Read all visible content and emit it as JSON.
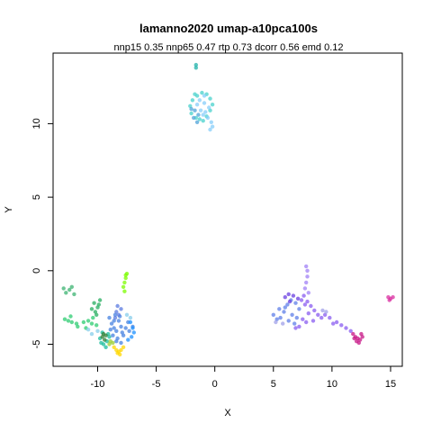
{
  "chart_data": {
    "type": "scatter",
    "title": "lamanno2020 umap-a10pca100s",
    "subtitle": "nnp15 0.35 nnp65 0.47 rtp 0.73 dcorr 0.56 emd 0.12",
    "xlabel": "X",
    "ylabel": "Y",
    "xlim": [
      -13.8,
      16.0
    ],
    "ylim": [
      -6.5,
      14.8
    ],
    "xticks": [
      -10,
      -5,
      0,
      5,
      10,
      15
    ],
    "yticks": [
      -5,
      0,
      5,
      10
    ],
    "grid": false,
    "legend": "none",
    "clusters": [
      {
        "color": "#2ECC71",
        "points": [
          [
            -10.5,
            -3.6
          ],
          [
            -10.8,
            -3.4
          ],
          [
            -11.2,
            -3.5
          ],
          [
            -11.8,
            -3.6
          ],
          [
            -12.2,
            -3.5
          ],
          [
            -12.5,
            -3.4
          ],
          [
            -12.8,
            -3.3
          ],
          [
            -12.3,
            -3.1
          ],
          [
            -11.7,
            -3.8
          ],
          [
            -11.0,
            -3.9
          ],
          [
            -10.4,
            -3.2
          ],
          [
            -10.1,
            -3.7
          ]
        ]
      },
      {
        "color": "#3CB371",
        "points": [
          [
            -12.4,
            -1.3
          ],
          [
            -12.7,
            -1.5
          ],
          [
            -12.9,
            -1.2
          ],
          [
            -12.2,
            -1.1
          ],
          [
            -12.0,
            -1.6
          ]
        ]
      },
      {
        "color": "#27AE60",
        "points": [
          [
            -10.3,
            -2.2
          ],
          [
            -10.0,
            -2.5
          ],
          [
            -10.2,
            -2.8
          ],
          [
            -9.8,
            -2.0
          ],
          [
            -10.5,
            -2.6
          ],
          [
            -10.1,
            -3.0
          ],
          [
            -9.9,
            -2.3
          ]
        ]
      },
      {
        "color": "#7CFC00",
        "points": [
          [
            -7.5,
            -0.2
          ],
          [
            -7.6,
            -0.5
          ],
          [
            -7.7,
            -0.8
          ],
          [
            -7.8,
            -1.1
          ],
          [
            -7.7,
            -1.4
          ],
          [
            -7.6,
            -0.3
          ]
        ]
      },
      {
        "color": "#1ABC9C",
        "points": [
          [
            -9.6,
            -4.2
          ],
          [
            -9.8,
            -4.6
          ],
          [
            -9.5,
            -5.0
          ],
          [
            -9.2,
            -4.8
          ],
          [
            -9.0,
            -4.5
          ],
          [
            -9.7,
            -4.9
          ],
          [
            -9.3,
            -5.2
          ],
          [
            -9.1,
            -4.3
          ]
        ]
      },
      {
        "color": "#2E7D32",
        "points": [
          [
            -9.5,
            -4.3
          ],
          [
            -9.3,
            -4.4
          ],
          [
            -9.6,
            -4.5
          ],
          [
            -9.4,
            -4.7
          ]
        ]
      },
      {
        "color": "#4682E0",
        "points": [
          [
            -9.0,
            -3.2
          ],
          [
            -8.8,
            -3.6
          ],
          [
            -8.6,
            -3.9
          ],
          [
            -8.4,
            -4.1
          ],
          [
            -8.7,
            -4.4
          ],
          [
            -8.2,
            -3.4
          ],
          [
            -8.0,
            -3.8
          ],
          [
            -7.9,
            -4.2
          ],
          [
            -8.5,
            -3.0
          ],
          [
            -8.9,
            -4.0
          ],
          [
            -8.3,
            -4.6
          ],
          [
            -8.1,
            -3.1
          ],
          [
            -7.6,
            -3.9
          ],
          [
            -7.4,
            -3.5
          ],
          [
            -7.8,
            -4.4
          ],
          [
            -8.6,
            -3.4
          ],
          [
            -8.4,
            -4.8
          ],
          [
            -8.0,
            -4.9
          ],
          [
            -7.3,
            -4.1
          ],
          [
            -7.0,
            -3.8
          ]
        ]
      },
      {
        "color": "#5B7BE0",
        "points": [
          [
            -8.4,
            -2.8
          ],
          [
            -8.2,
            -3.0
          ],
          [
            -8.5,
            -3.2
          ],
          [
            -8.0,
            -2.6
          ],
          [
            -8.3,
            -2.4
          ]
        ]
      },
      {
        "color": "#1E90FF",
        "points": [
          [
            -7.2,
            -3.5
          ],
          [
            -7.0,
            -3.9
          ],
          [
            -6.9,
            -4.2
          ],
          [
            -7.1,
            -4.5
          ],
          [
            -7.4,
            -4.7
          ]
        ]
      },
      {
        "color": "#87CEEB",
        "points": [
          [
            -10.8,
            -4.0
          ],
          [
            -10.5,
            -4.3
          ],
          [
            -10.0,
            -4.1
          ],
          [
            -7.5,
            -3.0
          ],
          [
            -7.2,
            -3.2
          ]
        ]
      },
      {
        "color": "#FFD700",
        "points": [
          [
            -8.6,
            -5.2
          ],
          [
            -8.4,
            -5.4
          ],
          [
            -8.2,
            -5.5
          ],
          [
            -8.0,
            -5.4
          ],
          [
            -7.8,
            -5.2
          ],
          [
            -8.3,
            -5.6
          ],
          [
            -8.1,
            -5.7
          ]
        ]
      },
      {
        "color": "#9ACD32",
        "points": [
          [
            -8.9,
            -4.8
          ],
          [
            -9.0,
            -5.0
          ],
          [
            -8.7,
            -4.9
          ]
        ]
      },
      {
        "color": "#48D1CC",
        "points": [
          [
            -1.9,
            11.6
          ],
          [
            -2.1,
            11.2
          ],
          [
            -2.0,
            10.7
          ],
          [
            -1.6,
            10.4
          ],
          [
            -1.3,
            10.3
          ],
          [
            -1.0,
            10.2
          ],
          [
            -0.7,
            10.5
          ],
          [
            -0.4,
            10.9
          ],
          [
            -0.2,
            11.3
          ],
          [
            -0.4,
            11.7
          ],
          [
            -0.7,
            12.0
          ],
          [
            -1.1,
            12.1
          ],
          [
            -1.5,
            11.9
          ],
          [
            -1.7,
            12.0
          ]
        ]
      },
      {
        "color": "#87CEFA",
        "points": [
          [
            -1.5,
            11.3
          ],
          [
            -1.2,
            10.9
          ],
          [
            -0.9,
            11.4
          ],
          [
            -1.3,
            11.6
          ],
          [
            -0.8,
            10.8
          ],
          [
            -0.5,
            11.1
          ],
          [
            -1.0,
            10.6
          ],
          [
            -0.6,
            10.4
          ],
          [
            -0.3,
            10.1
          ],
          [
            -0.2,
            9.8
          ],
          [
            -0.4,
            9.6
          ],
          [
            -0.9,
            11.9
          ]
        ]
      },
      {
        "color": "#4FA3D8",
        "points": [
          [
            -1.7,
            10.9
          ],
          [
            -1.4,
            10.6
          ],
          [
            -1.8,
            10.4
          ],
          [
            -1.5,
            10.1
          ],
          [
            -2.0,
            11.0
          ]
        ]
      },
      {
        "color": "#20B2AA",
        "points": [
          [
            -1.6,
            14.0
          ],
          [
            -1.6,
            13.8
          ]
        ]
      },
      {
        "color": "#5F7FE8",
        "points": [
          [
            5.0,
            -3.0
          ],
          [
            5.3,
            -3.3
          ],
          [
            5.6,
            -3.2
          ],
          [
            5.9,
            -2.8
          ],
          [
            6.2,
            -2.3
          ],
          [
            6.5,
            -2.0
          ],
          [
            6.9,
            -2.2
          ],
          [
            7.2,
            -2.6
          ],
          [
            6.6,
            -3.0
          ],
          [
            6.0,
            -2.5
          ],
          [
            6.3,
            -3.4
          ],
          [
            6.8,
            -3.6
          ],
          [
            7.0,
            -3.2
          ],
          [
            5.5,
            -2.6
          ]
        ]
      },
      {
        "color": "#8A5CF0",
        "points": [
          [
            7.4,
            -2.0
          ],
          [
            7.6,
            -1.7
          ],
          [
            7.9,
            -2.1
          ],
          [
            8.2,
            -2.4
          ],
          [
            8.5,
            -2.7
          ],
          [
            8.8,
            -3.0
          ],
          [
            9.1,
            -3.2
          ],
          [
            9.4,
            -3.0
          ],
          [
            9.8,
            -3.2
          ],
          [
            10.1,
            -3.6
          ],
          [
            10.4,
            -3.5
          ],
          [
            10.8,
            -3.7
          ],
          [
            11.2,
            -3.9
          ],
          [
            11.6,
            -4.1
          ],
          [
            8.0,
            -2.9
          ],
          [
            7.5,
            -3.3
          ],
          [
            7.8,
            -3.5
          ],
          [
            7.2,
            -3.8
          ],
          [
            6.9,
            -3.9
          ],
          [
            8.4,
            -3.4
          ],
          [
            7.7,
            -2.3
          ]
        ]
      },
      {
        "color": "#A080F5",
        "points": [
          [
            7.8,
            0.3
          ],
          [
            7.9,
            0.0
          ],
          [
            7.9,
            -0.4
          ],
          [
            7.8,
            -0.8
          ],
          [
            7.7,
            -1.2
          ],
          [
            8.0,
            -1.5
          ]
        ]
      },
      {
        "color": "#6A3FE0",
        "points": [
          [
            6.0,
            -1.8
          ],
          [
            6.3,
            -1.6
          ],
          [
            6.7,
            -1.7
          ],
          [
            7.1,
            -1.9
          ],
          [
            6.4,
            -2.1
          ]
        ]
      },
      {
        "color": "#C71585",
        "points": [
          [
            11.8,
            -4.3
          ],
          [
            12.0,
            -4.5
          ],
          [
            12.2,
            -4.6
          ],
          [
            12.4,
            -4.7
          ],
          [
            12.6,
            -4.5
          ],
          [
            12.5,
            -4.3
          ],
          [
            12.3,
            -4.9
          ],
          [
            12.1,
            -4.8
          ],
          [
            11.9,
            -4.6
          ]
        ]
      },
      {
        "color": "#DA2FA0",
        "points": [
          [
            14.8,
            -1.8
          ],
          [
            15.0,
            -1.9
          ],
          [
            15.2,
            -1.8
          ],
          [
            14.9,
            -2.0
          ]
        ]
      },
      {
        "color": "#A0A0E8",
        "points": [
          [
            9.2,
            -2.7
          ],
          [
            9.5,
            -2.8
          ],
          [
            5.2,
            -3.5
          ],
          [
            5.8,
            -3.6
          ]
        ]
      }
    ]
  }
}
